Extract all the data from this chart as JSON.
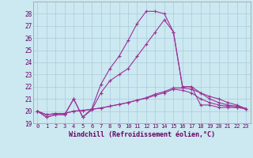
{
  "bg_color": "#cce8f0",
  "grid_color": "#aaccdd",
  "line_color": "#993399",
  "xlabel": "Windchill (Refroidissement éolien,°C)",
  "xlabel_color": "#660066",
  "tick_color": "#660066",
  "xlim": [
    -0.5,
    23.5
  ],
  "ylim": [
    19,
    29
  ],
  "yticks": [
    19,
    20,
    21,
    22,
    23,
    24,
    25,
    26,
    27,
    28
  ],
  "xticks": [
    0,
    1,
    2,
    3,
    4,
    5,
    6,
    7,
    8,
    9,
    10,
    11,
    12,
    13,
    14,
    15,
    16,
    17,
    18,
    19,
    20,
    21,
    22,
    23
  ],
  "series": [
    [
      20.0,
      19.5,
      19.7,
      19.7,
      21.0,
      19.5,
      20.2,
      22.2,
      23.5,
      24.5,
      25.8,
      27.2,
      28.2,
      28.2,
      28.0,
      26.5,
      22.0,
      22.0,
      20.5,
      20.5,
      20.3,
      20.3,
      20.3,
      20.2
    ],
    [
      20.0,
      19.5,
      19.7,
      19.7,
      21.0,
      19.5,
      20.1,
      21.5,
      22.5,
      23.0,
      23.5,
      24.5,
      25.5,
      26.5,
      27.5,
      26.5,
      22.0,
      22.0,
      21.5,
      21.0,
      20.7,
      20.5,
      20.4,
      20.2
    ],
    [
      20.0,
      19.7,
      19.8,
      19.8,
      20.0,
      20.05,
      20.15,
      20.25,
      20.4,
      20.55,
      20.7,
      20.9,
      21.1,
      21.4,
      21.6,
      21.9,
      21.9,
      21.8,
      21.5,
      21.2,
      21.0,
      20.7,
      20.5,
      20.2
    ],
    [
      20.0,
      19.7,
      19.8,
      19.8,
      20.0,
      20.05,
      20.15,
      20.25,
      20.4,
      20.55,
      20.7,
      20.9,
      21.05,
      21.3,
      21.5,
      21.8,
      21.7,
      21.5,
      21.0,
      20.7,
      20.5,
      20.4,
      20.3,
      20.2
    ]
  ]
}
